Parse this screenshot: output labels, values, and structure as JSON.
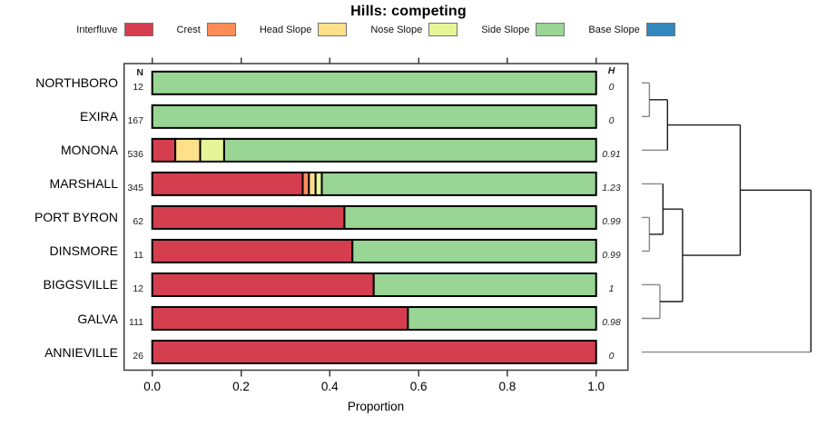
{
  "title": "Hills: competing",
  "legend": {
    "items": [
      {
        "label": "Interfluve",
        "color": "#D53E4F"
      },
      {
        "label": "Crest",
        "color": "#FC8D59"
      },
      {
        "label": "Head Slope",
        "color": "#FEE08B"
      },
      {
        "label": "Nose Slope",
        "color": "#E6F598"
      },
      {
        "label": "Side Slope",
        "color": "#99D594"
      },
      {
        "label": "Base Slope",
        "color": "#3288BD"
      }
    ],
    "swatch_border_color": "#757575"
  },
  "chart_data": {
    "type": "bar",
    "orientation": "horizontal-stacked",
    "title": "Hills: competing",
    "xlabel": "Proportion",
    "xlim": [
      0,
      1
    ],
    "x_ticks": [
      "0.0",
      "0.2",
      "0.4",
      "0.6",
      "0.8",
      "1.0"
    ],
    "grid": false,
    "categories": [
      "Interfluve",
      "Crest",
      "Head Slope",
      "Nose Slope",
      "Side Slope",
      "Base Slope"
    ],
    "colors": [
      "#D53E4F",
      "#FC8D59",
      "#FEE08B",
      "#E6F598",
      "#99D594",
      "#3288BD"
    ],
    "columns": {
      "n_header": "N",
      "h_header": "H"
    },
    "rows": [
      {
        "label": "NORTHBORO",
        "n": "12",
        "h": "0",
        "values": [
          0,
          0,
          0,
          0,
          1,
          0
        ]
      },
      {
        "label": "EXIRA",
        "n": "167",
        "h": "0",
        "values": [
          0,
          0,
          0,
          0,
          1,
          0
        ]
      },
      {
        "label": "MONONA",
        "n": "536",
        "h": "0.91",
        "values": [
          0.052,
          0,
          0.056,
          0.054,
          0.838,
          0
        ]
      },
      {
        "label": "MARSHALL",
        "n": "345",
        "h": "1.23",
        "values": [
          0.339,
          0.014,
          0.015,
          0.014,
          0.618,
          0
        ]
      },
      {
        "label": "PORT BYRON",
        "n": "62",
        "h": "0.99",
        "values": [
          0.433,
          0,
          0,
          0,
          0.567,
          0
        ]
      },
      {
        "label": "DINSMORE",
        "n": "11",
        "h": "0.99",
        "values": [
          0.451,
          0,
          0,
          0,
          0.549,
          0
        ]
      },
      {
        "label": "BIGGSVILLE",
        "n": "12",
        "h": "1",
        "values": [
          0.499,
          0,
          0,
          0,
          0.501,
          0
        ]
      },
      {
        "label": "GALVA",
        "n": "111",
        "h": "0.98",
        "values": [
          0.576,
          0,
          0,
          0,
          0.424,
          0
        ]
      },
      {
        "label": "ANNIEVILLE",
        "n": "26",
        "h": "0",
        "values": [
          1,
          0,
          0,
          0,
          0,
          0
        ]
      }
    ],
    "dendrogram": {
      "leaf_order": [
        "NORTHBORO",
        "EXIRA",
        "MONONA",
        "MARSHALL",
        "PORT BYRON",
        "DINSMORE",
        "BIGGSVILLE",
        "GALVA",
        "ANNIEVILLE"
      ],
      "merges": [
        {
          "id": "m1",
          "children": [
            "L0",
            "L1"
          ],
          "height": 0.045
        },
        {
          "id": "m2",
          "children": [
            "m1",
            "L2"
          ],
          "height": 0.152
        },
        {
          "id": "m3",
          "children": [
            "L4",
            "L5"
          ],
          "height": 0.045
        },
        {
          "id": "m4",
          "children": [
            "L3",
            "m3"
          ],
          "height": 0.125
        },
        {
          "id": "m5",
          "children": [
            "L6",
            "L7"
          ],
          "height": 0.107
        },
        {
          "id": "m6",
          "children": [
            "m4",
            "m5"
          ],
          "height": 0.241
        },
        {
          "id": "m7",
          "children": [
            "m2",
            "m6"
          ],
          "height": 0.582
        },
        {
          "id": "m8",
          "children": [
            "m7",
            "L8"
          ],
          "height": 1.0
        }
      ]
    }
  }
}
